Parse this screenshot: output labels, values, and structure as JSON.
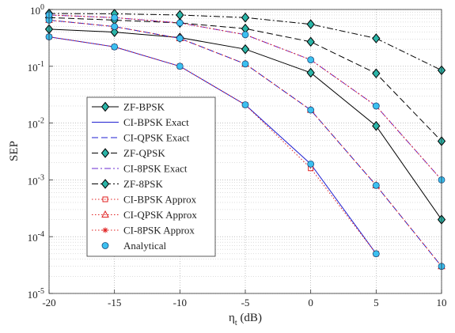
{
  "chart_data": {
    "type": "line",
    "xlabel": "η_t (dB)",
    "ylabel": "SEP",
    "x": [
      -20,
      -15,
      -10,
      -5,
      0,
      5,
      10
    ],
    "xlim": [
      -20,
      10
    ],
    "xticks": [
      -20,
      -15,
      -10,
      -5,
      0,
      5,
      10
    ],
    "ylim": [
      1e-05,
      1
    ],
    "yscale": "log",
    "yticks": [
      {
        "value": 1e-05,
        "label": "10^-5"
      },
      {
        "value": 0.0001,
        "label": "10^-4"
      },
      {
        "value": 0.001,
        "label": "10^-3"
      },
      {
        "value": 0.01,
        "label": "10^-2"
      },
      {
        "value": 0.1,
        "label": "10^-1"
      },
      {
        "value": 1,
        "label": "10^0"
      }
    ],
    "grid": true,
    "legend": "center left",
    "series": [
      {
        "name": "ZF-BPSK",
        "color": "#000000",
        "dash": "solid",
        "marker": "diamond",
        "marker_fill": "#2bb5a8",
        "values": [
          0.45,
          0.4,
          0.32,
          0.2,
          0.077,
          0.0089,
          0.0002
        ]
      },
      {
        "name": "CI-BPSK Exact",
        "color": "#1f1fd0",
        "dash": "solid",
        "marker": "none",
        "values": [
          0.33,
          0.22,
          0.1,
          0.021,
          0.0019,
          5e-05,
          null
        ]
      },
      {
        "name": "CI-QPSK Exact",
        "color": "#1f1fd0",
        "dash": "dashed",
        "marker": "none",
        "values": [
          0.65,
          0.5,
          0.31,
          0.11,
          0.017,
          0.0008,
          3e-05
        ]
      },
      {
        "name": "ZF-QPSK",
        "color": "#000000",
        "dash": "dashed",
        "marker": "diamond",
        "marker_fill": "#2bb5a8",
        "values": [
          0.72,
          0.65,
          0.58,
          0.46,
          0.27,
          0.075,
          0.0048
        ]
      },
      {
        "name": "CI-8PSK Exact",
        "color": "#6a2ad0",
        "dash": "dashdot",
        "marker": "none",
        "values": [
          0.8,
          0.72,
          0.58,
          0.36,
          0.13,
          0.02,
          0.001
        ]
      },
      {
        "name": "ZF-8PSK",
        "color": "#000000",
        "dash": "dashdot",
        "marker": "diamond",
        "marker_fill": "#2bb5a8",
        "values": [
          0.85,
          0.84,
          0.8,
          0.72,
          0.55,
          0.31,
          0.085
        ]
      },
      {
        "name": "CI-BPSK Approx",
        "color": "#e02020",
        "dash": "dotted",
        "marker": "square",
        "marker_fill": "none",
        "values": [
          0.33,
          0.22,
          0.1,
          0.021,
          0.0016,
          5e-05,
          null
        ]
      },
      {
        "name": "CI-QPSK Approx",
        "color": "#e02020",
        "dash": "dotted",
        "marker": "triangle",
        "marker_fill": "none",
        "values": [
          0.65,
          0.5,
          0.31,
          0.11,
          0.017,
          0.0008,
          3e-05
        ]
      },
      {
        "name": "CI-8PSK Approx",
        "color": "#e02020",
        "dash": "dotted",
        "marker": "star",
        "marker_fill": "none",
        "values": [
          0.8,
          0.72,
          0.58,
          0.36,
          0.13,
          0.02,
          0.001
        ]
      },
      {
        "name": "Analytical",
        "color": "#1a4a7a",
        "dash": "none",
        "marker": "circle",
        "marker_fill": "#3cc0f0",
        "x": [
          -20,
          -15,
          -10,
          -5,
          0,
          5,
          -20,
          -15,
          -10,
          -5,
          0,
          5,
          10,
          -20,
          -15,
          -10,
          -5,
          0,
          5,
          10
        ],
        "values": [
          0.33,
          0.22,
          0.1,
          0.021,
          0.0019,
          5e-05,
          0.65,
          0.5,
          0.31,
          0.11,
          0.017,
          0.0008,
          3e-05,
          0.8,
          0.72,
          0.58,
          0.36,
          0.13,
          0.02,
          0.001
        ]
      }
    ]
  }
}
